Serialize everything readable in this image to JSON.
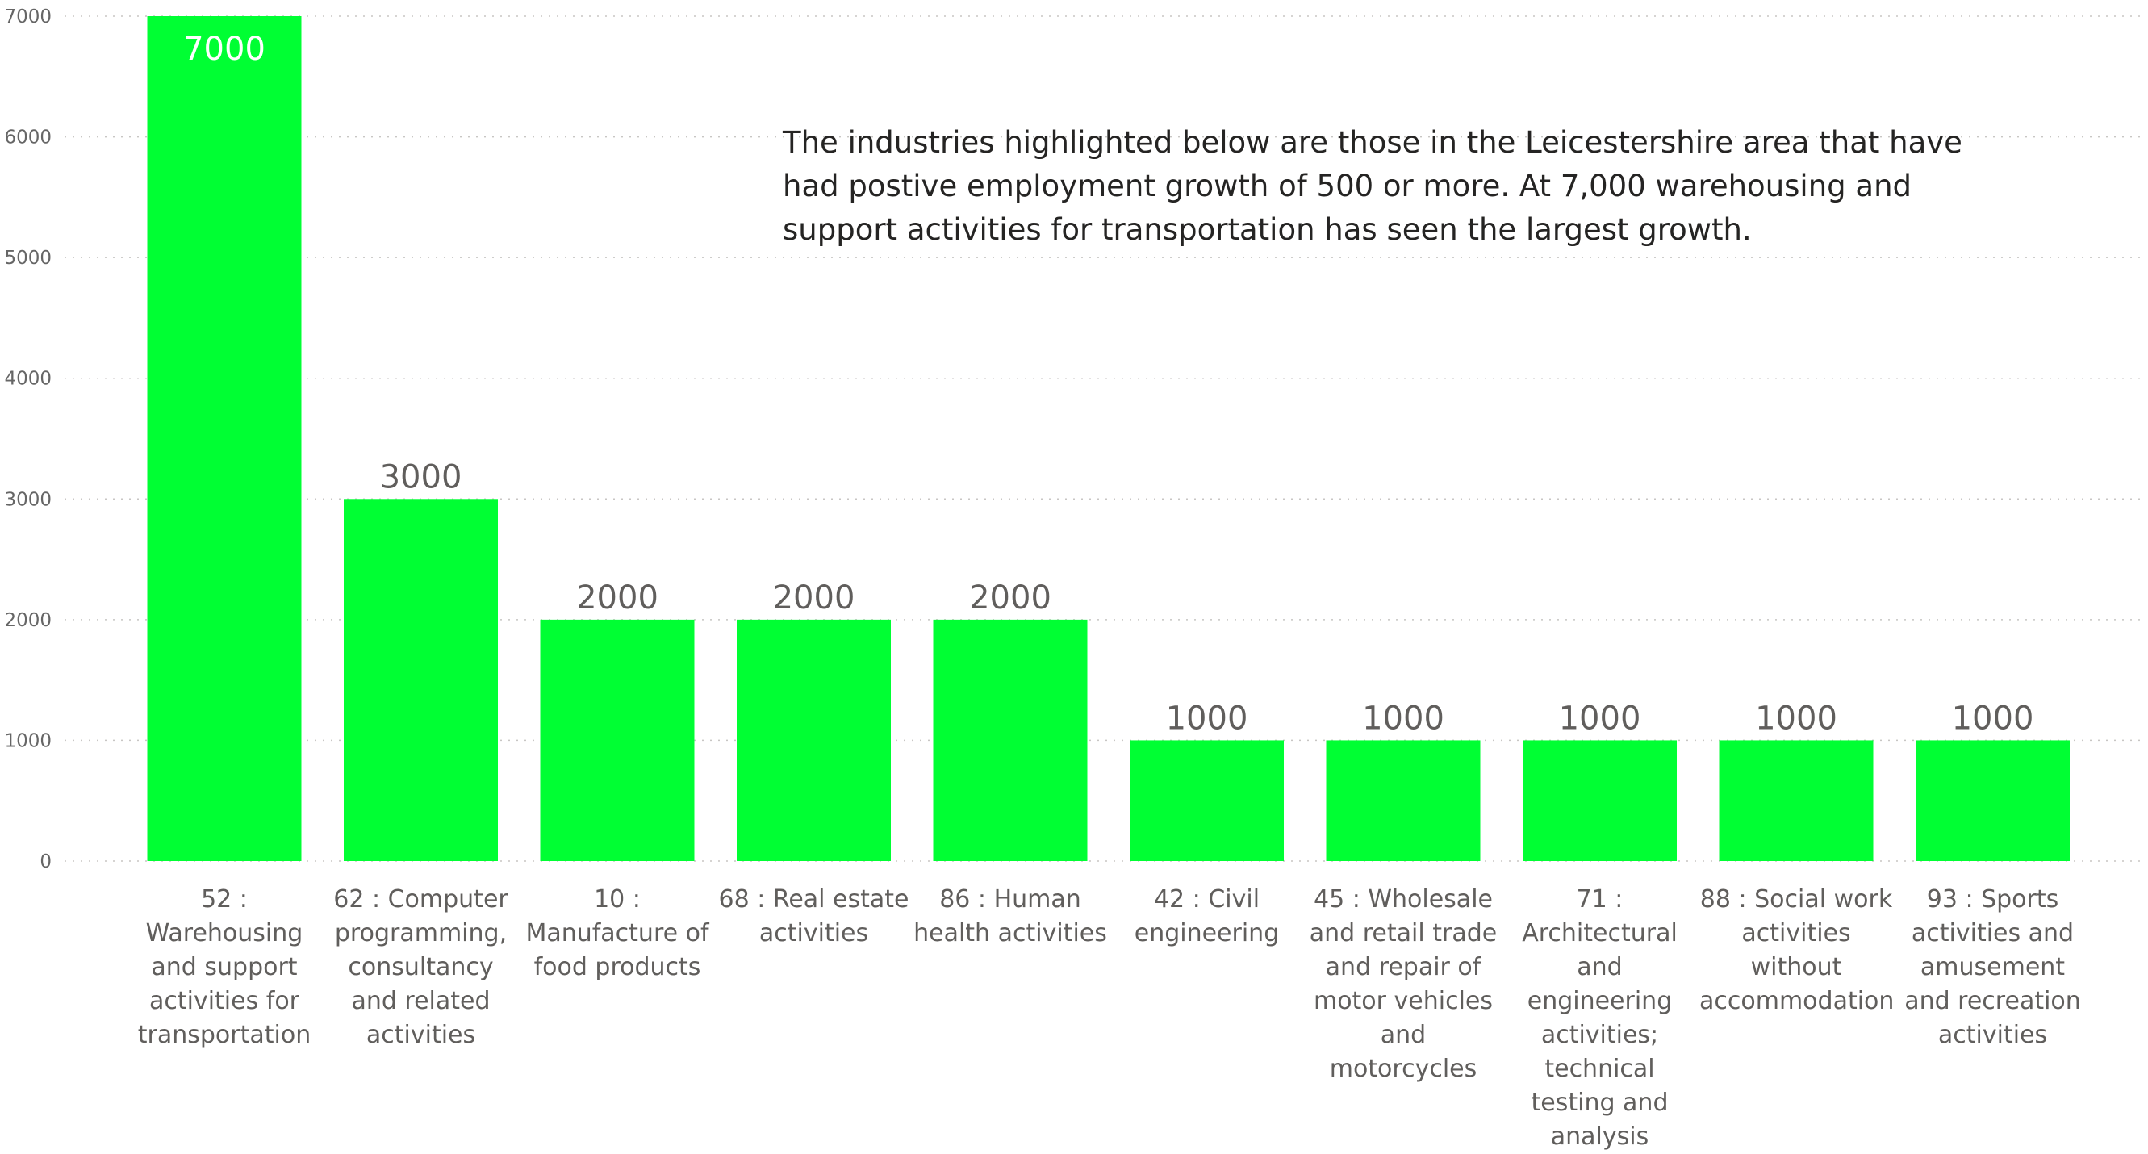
{
  "annotation": "The industries highlighted below are those in the Leicestershire area that have had postive employment growth of 500 or more.  At 7,000 warehousing and support activities for transportation has seen the largest growth.",
  "chart_data": {
    "type": "bar",
    "categories": [
      "52 : Warehousing and support activities for transportation",
      "62 : Computer programming, consultancy and related activities",
      "10 : Manufacture of food products",
      "68 : Real estate activities",
      "86 : Human health activities",
      "42 : Civil engineering",
      "45 : Wholesale and retail trade and repair of motor vehicles and motorcycles",
      "71 : Architectural and engineering activities; technical testing and analysis",
      "88 : Social work activities without accommodation",
      "93 : Sports activities and amusement and recreation activities"
    ],
    "values": [
      7000,
      3000,
      2000,
      2000,
      2000,
      1000,
      1000,
      1000,
      1000,
      1000
    ],
    "data_labels": [
      "7000",
      "3000",
      "2000",
      "2000",
      "2000",
      "1000",
      "1000",
      "1000",
      "1000",
      "1000"
    ],
    "yticks": [
      0,
      1000,
      2000,
      3000,
      4000,
      5000,
      6000,
      7000
    ],
    "ytick_labels": [
      "0",
      "1000",
      "2000",
      "3000",
      "4000",
      "5000",
      "6000",
      "7000"
    ],
    "ylim": [
      0,
      7000
    ],
    "grid": true,
    "bar_color": "#00ff33",
    "label_inside_color": "#ffffff",
    "label_outside_color": "#605e5c",
    "grid_color": "#c8c6c4"
  }
}
